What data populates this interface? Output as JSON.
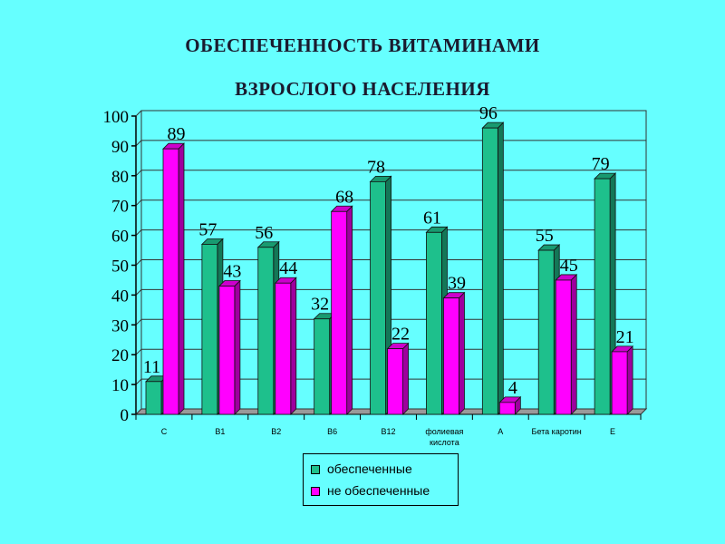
{
  "title": {
    "line1": "ОБЕСПЕЧЕННОСТЬ ВИТАМИНАМИ",
    "line2": "ВЗРОСЛОГО НАСЕЛЕНИЯ"
  },
  "colors": {
    "background": "#66ffff",
    "series1": "#1ec08c",
    "series2": "#ff00ff"
  },
  "chart_data": {
    "type": "bar",
    "categories": [
      "C",
      "B1",
      "B2",
      "B6",
      "B12",
      "фолиевая кислота",
      "A",
      "Бета каротин",
      "E"
    ],
    "series": [
      {
        "name": "обеспеченные",
        "values": [
          11,
          57,
          56,
          32,
          78,
          61,
          96,
          55,
          79
        ]
      },
      {
        "name": "не обеспеченные",
        "values": [
          89,
          43,
          44,
          68,
          22,
          39,
          4,
          45,
          21
        ]
      }
    ],
    "ylim": [
      0,
      100
    ],
    "yticks": [
      0,
      10,
      20,
      30,
      40,
      50,
      60,
      70,
      80,
      90,
      100
    ],
    "grid": true,
    "legend_position": "bottom"
  }
}
